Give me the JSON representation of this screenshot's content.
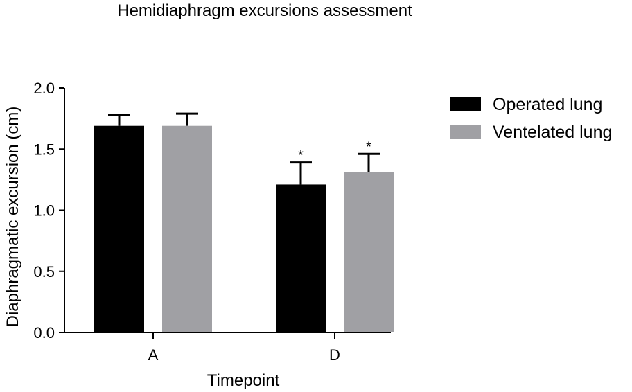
{
  "chart_data": {
    "type": "bar",
    "title": "Hemidiaphragm excursions assessment",
    "xlabel": "Timepoint",
    "ylabel": "Diaphragmatic excursion (cm)",
    "categories": [
      "A",
      "D"
    ],
    "ylim": [
      0,
      2.0
    ],
    "yticks": [
      0.0,
      0.5,
      1.0,
      1.5,
      2.0
    ],
    "ytick_labels": [
      "0.0",
      "0.5",
      "1.0",
      "1.5",
      "2.0"
    ],
    "series": [
      {
        "name": "Operated lung",
        "values": [
          1.69,
          1.21
        ],
        "error": [
          0.09,
          0.18
        ],
        "color": "#000000"
      },
      {
        "name": "Ventelated lung",
        "values": [
          1.69,
          1.31
        ],
        "error": [
          0.1,
          0.15
        ],
        "color": "#a0a0a4"
      }
    ],
    "annotations": [
      {
        "category": "D",
        "series": "Operated lung",
        "text": "*"
      },
      {
        "category": "D",
        "series": "Ventelated lung",
        "text": "*"
      }
    ],
    "grid": false,
    "legend": "right"
  }
}
